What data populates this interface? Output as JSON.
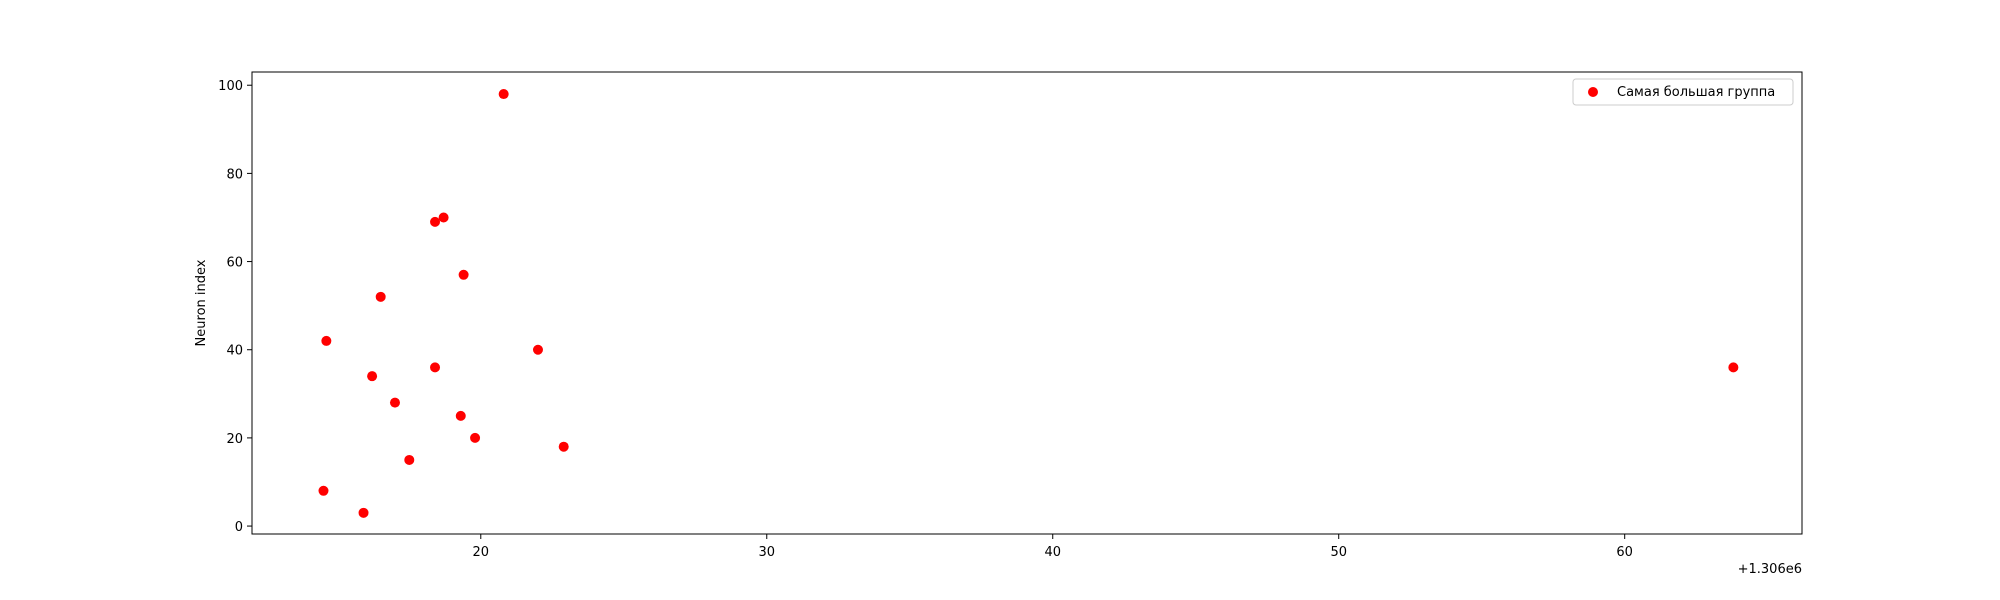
{
  "chart_data": {
    "type": "scatter",
    "title": "",
    "xlabel": "",
    "ylabel": "Neuron index",
    "x_offset_label": "+1.306e6",
    "xlim": [
      1306012.0,
      1306066.2
    ],
    "ylim": [
      -1.8,
      103
    ],
    "x_ticks": [
      {
        "value": 1306020,
        "label": "20"
      },
      {
        "value": 1306030,
        "label": "30"
      },
      {
        "value": 1306040,
        "label": "40"
      },
      {
        "value": 1306050,
        "label": "50"
      },
      {
        "value": 1306060,
        "label": "60"
      }
    ],
    "y_ticks": [
      {
        "value": 0,
        "label": "0"
      },
      {
        "value": 20,
        "label": "20"
      },
      {
        "value": 40,
        "label": "40"
      },
      {
        "value": 60,
        "label": "60"
      },
      {
        "value": 80,
        "label": "80"
      },
      {
        "value": 100,
        "label": "100"
      }
    ],
    "grid": false,
    "legend_position": "top-right",
    "series": [
      {
        "name": "Самая большая группа",
        "color": "#ff0000",
        "marker": "circle",
        "points": [
          {
            "x": 1306014.5,
            "y": 8
          },
          {
            "x": 1306014.6,
            "y": 42
          },
          {
            "x": 1306015.9,
            "y": 3
          },
          {
            "x": 1306016.2,
            "y": 34
          },
          {
            "x": 1306016.5,
            "y": 52
          },
          {
            "x": 1306017.0,
            "y": 28
          },
          {
            "x": 1306017.5,
            "y": 15
          },
          {
            "x": 1306018.4,
            "y": 69
          },
          {
            "x": 1306018.4,
            "y": 36
          },
          {
            "x": 1306018.7,
            "y": 70
          },
          {
            "x": 1306019.3,
            "y": 25
          },
          {
            "x": 1306019.4,
            "y": 57
          },
          {
            "x": 1306019.8,
            "y": 20
          },
          {
            "x": 1306020.8,
            "y": 98
          },
          {
            "x": 1306022.0,
            "y": 40
          },
          {
            "x": 1306022.9,
            "y": 18
          },
          {
            "x": 1306063.8,
            "y": 36
          }
        ]
      }
    ]
  }
}
